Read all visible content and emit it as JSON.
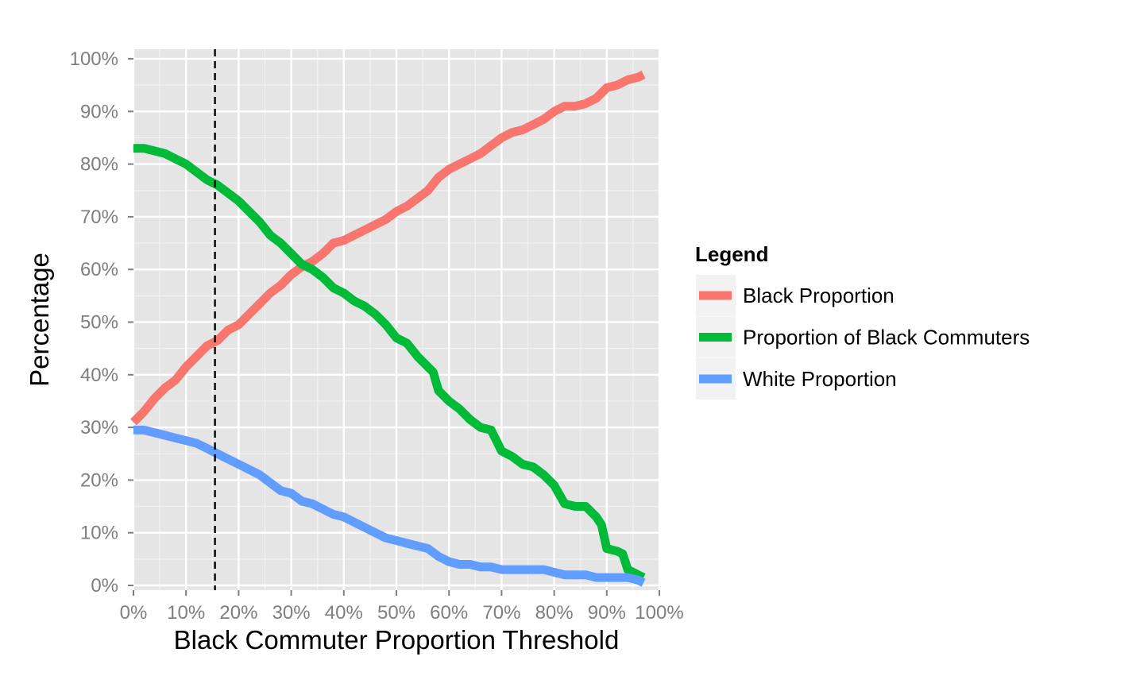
{
  "chart_data": {
    "type": "line",
    "title": "",
    "xlabel": "Black Commuter Proportion Threshold",
    "ylabel": "Percentage",
    "xlim": [
      0,
      100
    ],
    "ylim": [
      0,
      100
    ],
    "x_ticks": [
      0,
      10,
      20,
      30,
      40,
      50,
      60,
      70,
      80,
      90,
      100
    ],
    "x_tick_labels": [
      "0%",
      "10%",
      "20%",
      "30%",
      "40%",
      "50%",
      "60%",
      "70%",
      "80%",
      "90%",
      "100%"
    ],
    "y_ticks": [
      0,
      10,
      20,
      30,
      40,
      50,
      60,
      70,
      80,
      90,
      100
    ],
    "y_tick_labels": [
      "0%",
      "10%",
      "20%",
      "30%",
      "40%",
      "50%",
      "60%",
      "70%",
      "80%",
      "90%",
      "100%"
    ],
    "grid": true,
    "legend": {
      "title": "Legend",
      "placement": "right",
      "entries": [
        "Black Proportion",
        "Proportion of Black Commuters",
        "White Proportion"
      ]
    },
    "vline": {
      "x": 15.5,
      "style": "dashed"
    },
    "series": [
      {
        "name": "Black Proportion",
        "color": "#F8766D",
        "x": [
          0,
          2,
          4,
          6,
          8,
          10,
          12,
          14,
          16,
          18,
          20,
          22,
          24,
          26,
          28,
          30,
          32,
          34,
          36,
          38,
          40,
          42,
          44,
          46,
          48,
          50,
          52,
          54,
          56,
          58,
          60,
          62,
          64,
          66,
          68,
          70,
          72,
          74,
          76,
          78,
          80,
          82,
          84,
          86,
          88,
          90,
          92,
          94,
          96,
          97
        ],
        "values": [
          31,
          33,
          35.5,
          37.5,
          39,
          41.5,
          43.5,
          45.5,
          46.5,
          48.5,
          49.5,
          51.5,
          53.5,
          55.5,
          57,
          59,
          60.5,
          61.5,
          63,
          65,
          65.5,
          66.5,
          67.5,
          68.5,
          69.5,
          71,
          72,
          73.5,
          75,
          77.5,
          79,
          80,
          81,
          82,
          83.5,
          85,
          86,
          86.5,
          87.5,
          88.5,
          90,
          91,
          91,
          91.5,
          92.5,
          94.5,
          95,
          96,
          96.5,
          97
        ]
      },
      {
        "name": "Proportion of Black Commuters",
        "color": "#00BA38",
        "x": [
          0,
          2,
          4,
          6,
          8,
          10,
          12,
          14,
          16,
          18,
          20,
          22,
          24,
          26,
          28,
          30,
          32,
          34,
          36,
          38,
          40,
          42,
          44,
          46,
          48,
          50,
          52,
          54,
          56,
          57,
          58,
          60,
          62,
          64,
          66,
          68,
          70,
          72,
          74,
          76,
          78,
          80,
          82,
          84,
          86,
          88,
          89,
          90,
          92,
          93,
          94,
          95,
          97
        ],
        "values": [
          83,
          83,
          82.5,
          82,
          81,
          80,
          78.5,
          77,
          76,
          74.5,
          73,
          71,
          69,
          66.5,
          65,
          63,
          61,
          60,
          58.5,
          56.5,
          55.5,
          54,
          53,
          51.5,
          49.5,
          47,
          46,
          43.5,
          41.5,
          40.5,
          37,
          35,
          33.5,
          31.5,
          30,
          29.5,
          25.5,
          24.5,
          23,
          22.5,
          21,
          19,
          15.5,
          15,
          15,
          13,
          11.5,
          7,
          6.5,
          6,
          3,
          2.5,
          1.5
        ]
      },
      {
        "name": "White Proportion",
        "color": "#619CFF",
        "x": [
          0,
          2,
          4,
          6,
          8,
          10,
          12,
          14,
          16,
          18,
          20,
          22,
          24,
          26,
          28,
          30,
          32,
          34,
          36,
          38,
          40,
          42,
          44,
          46,
          48,
          50,
          52,
          54,
          56,
          58,
          60,
          62,
          64,
          66,
          68,
          70,
          72,
          74,
          76,
          78,
          80,
          82,
          84,
          86,
          88,
          90,
          92,
          94,
          96,
          97
        ],
        "values": [
          29.5,
          29.5,
          29,
          28.5,
          28,
          27.5,
          27,
          26,
          25,
          24,
          23,
          22,
          21,
          19.5,
          18,
          17.5,
          16,
          15.5,
          14.5,
          13.5,
          13,
          12,
          11,
          10,
          9,
          8.5,
          8,
          7.5,
          7,
          5.5,
          4.5,
          4,
          4,
          3.5,
          3.5,
          3,
          3,
          3,
          3,
          3,
          2.5,
          2,
          2,
          2,
          1.5,
          1.5,
          1.5,
          1.5,
          1,
          0.5
        ]
      }
    ]
  }
}
